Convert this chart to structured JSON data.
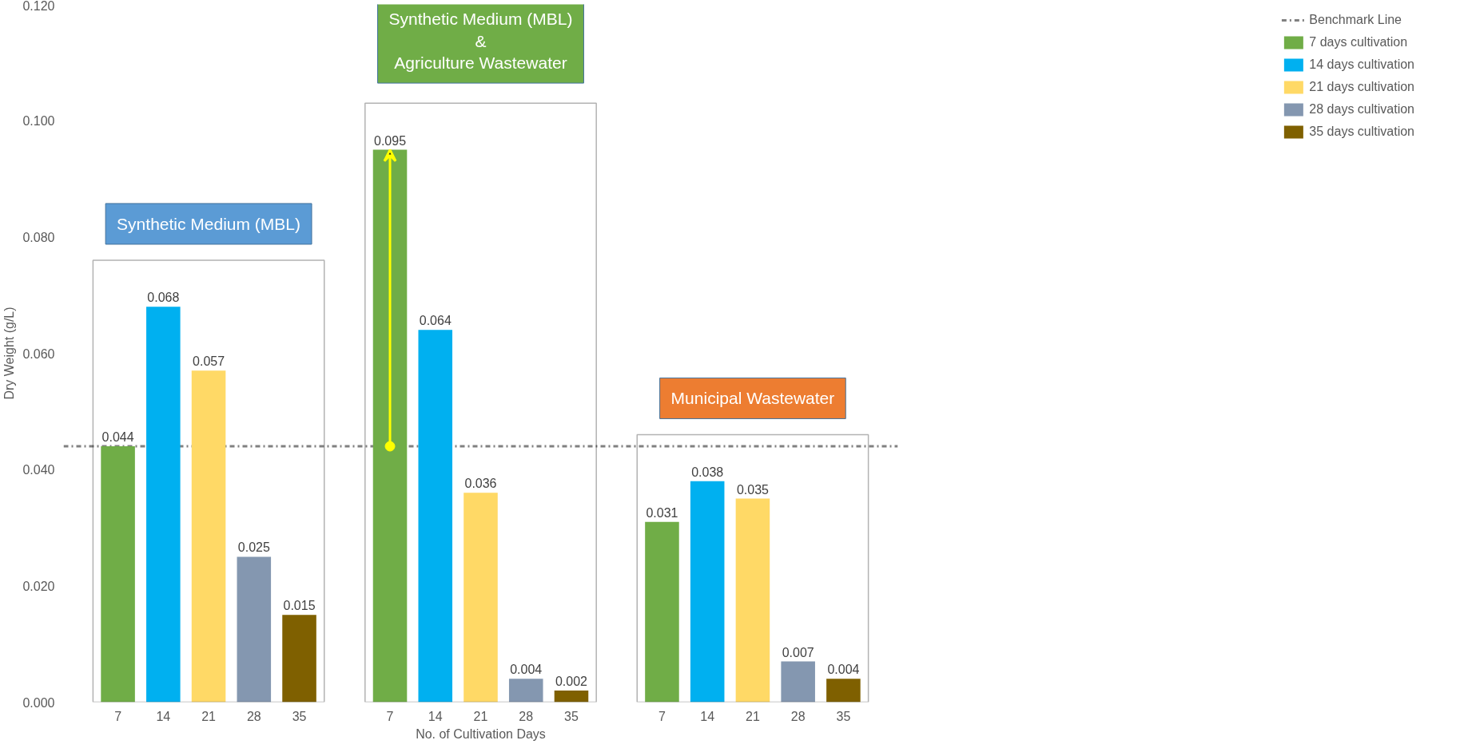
{
  "chart_data": {
    "type": "bar",
    "ylabel": "Dry Weight (g/L)",
    "xlabel": "No. of Cultivation Days",
    "categories": [
      "7",
      "14",
      "21",
      "28",
      "35",
      "7",
      "14",
      "21",
      "28",
      "35",
      "7",
      "14",
      "21",
      "28",
      "35"
    ],
    "series": [
      {
        "name": "7 days cultivation",
        "color": "#70ad47",
        "values": [
          0.044,
          null,
          null,
          null,
          null,
          0.095,
          null,
          null,
          null,
          null,
          0.031,
          null,
          null,
          null,
          null
        ]
      },
      {
        "name": "14 days cultivation",
        "color": "#00b0f0",
        "values": [
          null,
          0.068,
          null,
          null,
          null,
          null,
          0.064,
          null,
          null,
          null,
          null,
          0.038,
          null,
          null,
          null
        ]
      },
      {
        "name": "21 days cultivation",
        "color": "#ffd966",
        "values": [
          null,
          null,
          0.057,
          null,
          null,
          null,
          null,
          0.036,
          null,
          null,
          null,
          null,
          0.035,
          null,
          null
        ]
      },
      {
        "name": "28 days cultivation",
        "color": "#8497b0",
        "values": [
          null,
          null,
          null,
          0.025,
          null,
          null,
          null,
          null,
          0.004,
          null,
          null,
          null,
          null,
          0.007,
          null
        ]
      },
      {
        "name": "35 days cultivation",
        "color": "#7f6000",
        "values": [
          null,
          null,
          null,
          null,
          0.015,
          null,
          null,
          null,
          null,
          0.002,
          null,
          null,
          null,
          null,
          0.004
        ]
      }
    ],
    "ylim": [
      0,
      0.12
    ],
    "yticks": [
      {
        "value": 0,
        "label": "0.000"
      },
      {
        "value": 0.02,
        "label": "0.020"
      },
      {
        "value": 0.04,
        "label": "0.040"
      },
      {
        "value": 0.06,
        "label": "0.060"
      },
      {
        "value": 0.08,
        "label": "0.080"
      },
      {
        "value": 0.1,
        "label": "0.100"
      },
      {
        "value": 0.12,
        "label": "0.120"
      }
    ],
    "ref_lines": [
      {
        "axis": "y",
        "value": 0.044,
        "label": "Benchmark Line",
        "color": "#808080",
        "line_style": "dashdot"
      }
    ],
    "annotations": [
      "Synthetic Medium (MBL)",
      "Synthetic Medium (MBL)\n&\nAgriculture Wastewater",
      "Municipal Wastewater"
    ],
    "data_labels": true,
    "grid": false,
    "legend": "right"
  }
}
